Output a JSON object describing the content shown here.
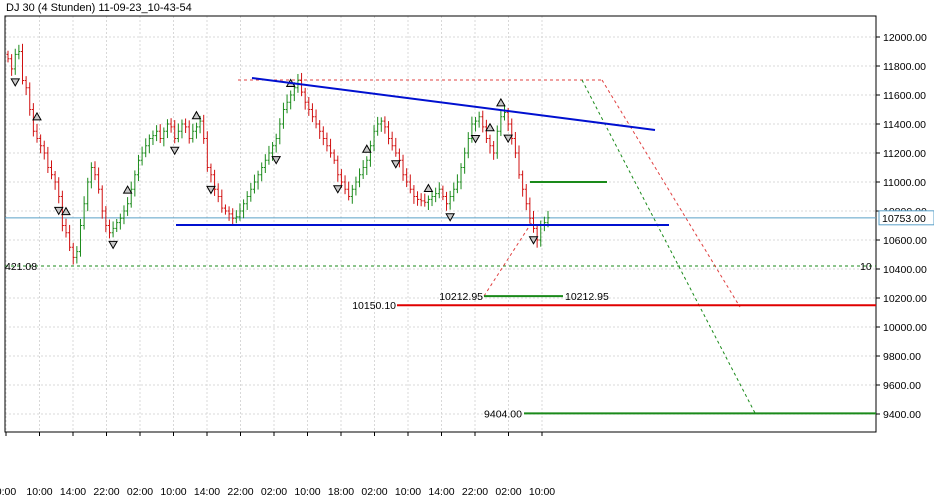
{
  "chart_data": {
    "type": "candlestick",
    "title": "DJ 30 (4 Stunden) 11-09-23_10-43-54",
    "ylim": [
      9330,
      12240
    ],
    "y_ticks": [
      "12000.00",
      "11800.00",
      "11600.00",
      "11400.00",
      "11200.00",
      "11000.00",
      "10800.00",
      "10600.00",
      "10400.00",
      "10200.00",
      "10000.00",
      "9800.00",
      "9600.00",
      "9400.00"
    ],
    "x_ticks": [
      "0:00",
      "10:00",
      "14:00",
      "22:00",
      "02:00",
      "10:00",
      "14:00",
      "22:00",
      "02:00",
      "10:00",
      "18:00",
      "02:00",
      "10:00",
      "14:00",
      "22:00",
      "02:00",
      "10:00"
    ],
    "grid": true,
    "current_price_label": "10753.00",
    "left_edge_label": "421.08",
    "right_edge_label": "10",
    "levels": [
      {
        "name": "support-level",
        "value": 10150.1,
        "label": "10150.10",
        "color": "#e00000"
      },
      {
        "name": "target-level",
        "value": 9404.0,
        "label": "9404.00",
        "color": "#1a8a1a"
      },
      {
        "name": "measured-move",
        "value": 10212.95,
        "label_left": "10212.95",
        "label_right": "10212.95",
        "color": "#1a8a1a"
      }
    ],
    "closes": [
      11850,
      11780,
      11880,
      11900,
      11700,
      11650,
      11500,
      11350,
      11300,
      11250,
      11200,
      11100,
      11050,
      11000,
      10900,
      10700,
      10650,
      10550,
      10480,
      10520,
      10700,
      10850,
      11000,
      11100,
      11050,
      10950,
      10800,
      10700,
      10650,
      10680,
      10720,
      10750,
      10800,
      10850,
      10950,
      11050,
      11150,
      11200,
      11250,
      11300,
      11320,
      11350,
      11300,
      11350,
      11400,
      11380,
      11300,
      11350,
      11400,
      11380,
      11300,
      11350,
      11380,
      11420,
      11300,
      11100,
      11050,
      10950,
      10900,
      10820,
      10800,
      10780,
      10750,
      10760,
      10800,
      10850,
      10900,
      10950,
      11000,
      11050,
      11100,
      11150,
      11200,
      11250,
      11300,
      11400,
      11500,
      11550,
      11600,
      11650,
      11700,
      11620,
      11550,
      11500,
      11450,
      11400,
      11350,
      11300,
      11250,
      11200,
      11150,
      11050,
      11000,
      10950,
      10900,
      10950,
      11000,
      11050,
      11100,
      11150,
      11250,
      11350,
      11400,
      11420,
      11380,
      11300,
      11250,
      11200,
      11150,
      11050,
      11000,
      10950,
      10900,
      10880,
      10870,
      10860,
      10880,
      10900,
      10920,
      10950,
      10900,
      10850,
      10900,
      10950,
      11000,
      11100,
      11200,
      11300,
      11400,
      11420,
      11450,
      11380,
      11300,
      11250,
      11200,
      11350,
      11450,
      11480,
      11400,
      11300,
      11200,
      11050,
      10950,
      10850,
      10750,
      10680,
      10600,
      10700,
      10720,
      10753
    ],
    "up_arrows_at": [
      8,
      16,
      33,
      52,
      78,
      99,
      116,
      133,
      136
    ],
    "down_arrows_at": [
      2,
      14,
      29,
      46,
      56,
      74,
      91,
      107,
      122,
      129,
      138,
      145
    ]
  }
}
